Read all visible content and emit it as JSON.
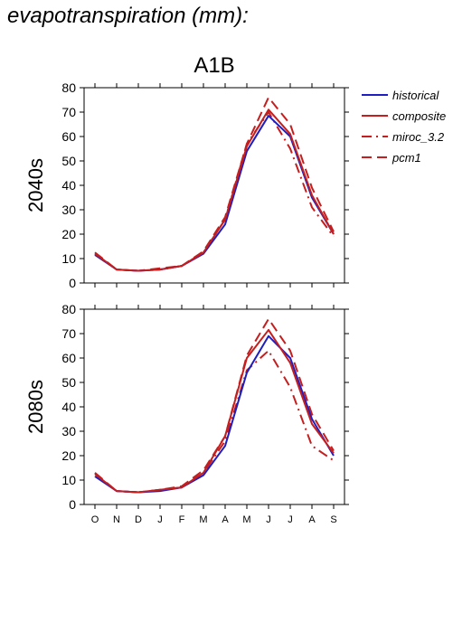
{
  "page": {
    "title": "evapotranspiration (mm):",
    "scenario": "A1B"
  },
  "colors": {
    "historical": "#1f1fbf",
    "composite": "#c41e1e",
    "miroc_3.2": "#c41e1e",
    "pcm1": "#c41e1e",
    "axis": "#000000"
  },
  "chart_data": [
    {
      "type": "line",
      "panel_label": "2040s",
      "categories": [
        "O",
        "N",
        "D",
        "J",
        "F",
        "M",
        "A",
        "M",
        "J",
        "J",
        "A",
        "S"
      ],
      "ylim": [
        0,
        80
      ],
      "yticks": [
        0,
        10,
        20,
        30,
        40,
        50,
        60,
        70,
        80
      ],
      "series": [
        {
          "name": "historical",
          "style": "solid",
          "values": [
            11.5,
            5.5,
            5,
            5.5,
            7,
            12,
            24,
            54,
            68.5,
            60,
            35,
            20
          ]
        },
        {
          "name": "composite",
          "style": "solid",
          "values": [
            12,
            5.5,
            5,
            5.5,
            7,
            12.5,
            26,
            56,
            71,
            61,
            36,
            20
          ]
        },
        {
          "name": "miroc_3.2",
          "style": "dashdot",
          "values": [
            12,
            5.5,
            5,
            5.5,
            7,
            12.5,
            26,
            57,
            70,
            55,
            31,
            19
          ]
        },
        {
          "name": "pcm1",
          "style": "dash",
          "values": [
            12.5,
            5.5,
            5,
            6,
            7,
            13,
            27,
            57,
            76,
            65,
            39,
            21
          ]
        }
      ]
    },
    {
      "type": "line",
      "panel_label": "2080s",
      "categories": [
        "O",
        "N",
        "D",
        "J",
        "F",
        "M",
        "A",
        "M",
        "J",
        "J",
        "A",
        "S"
      ],
      "ylim": [
        0,
        80
      ],
      "yticks": [
        0,
        10,
        20,
        30,
        40,
        50,
        60,
        70,
        80
      ],
      "series": [
        {
          "name": "historical",
          "style": "solid",
          "values": [
            11.5,
            5.5,
            5,
            5.5,
            7,
            12,
            24,
            54,
            69,
            60,
            35,
            20
          ]
        },
        {
          "name": "composite",
          "style": "solid",
          "values": [
            12.5,
            5.5,
            5,
            6,
            7,
            13,
            28,
            60,
            71.5,
            58,
            33,
            21
          ]
        },
        {
          "name": "miroc_3.2",
          "style": "dashdot",
          "values": [
            12.5,
            5.5,
            5,
            6,
            7,
            13,
            26,
            55,
            63,
            48,
            24,
            18
          ]
        },
        {
          "name": "pcm1",
          "style": "dash",
          "values": [
            13,
            5.5,
            5,
            6,
            7.5,
            14,
            28,
            61,
            76,
            63,
            37,
            22
          ]
        }
      ]
    }
  ]
}
